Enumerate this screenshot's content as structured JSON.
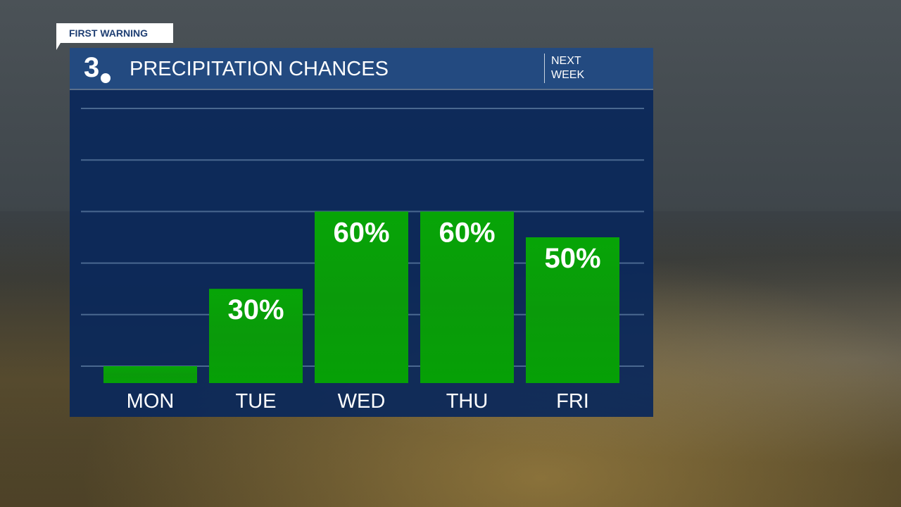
{
  "badge": "FIRST WARNING",
  "header": {
    "logo": "3",
    "title": "PRECIPITATION CHANCES",
    "period": "NEXT WEEK"
  },
  "colors": {
    "header": "#234a80",
    "panel": "#0a285a",
    "bar": "#06a006"
  },
  "chart_data": {
    "type": "bar",
    "title": "PRECIPITATION CHANCES",
    "categories": [
      "MON",
      "TUE",
      "WED",
      "THU",
      "FRI"
    ],
    "values": [
      0,
      30,
      60,
      60,
      50
    ],
    "data_labels": [
      "",
      "30%",
      "60%",
      "60%",
      "50%"
    ],
    "ylim": [
      0,
      100
    ],
    "grid": true,
    "unit": "%"
  }
}
